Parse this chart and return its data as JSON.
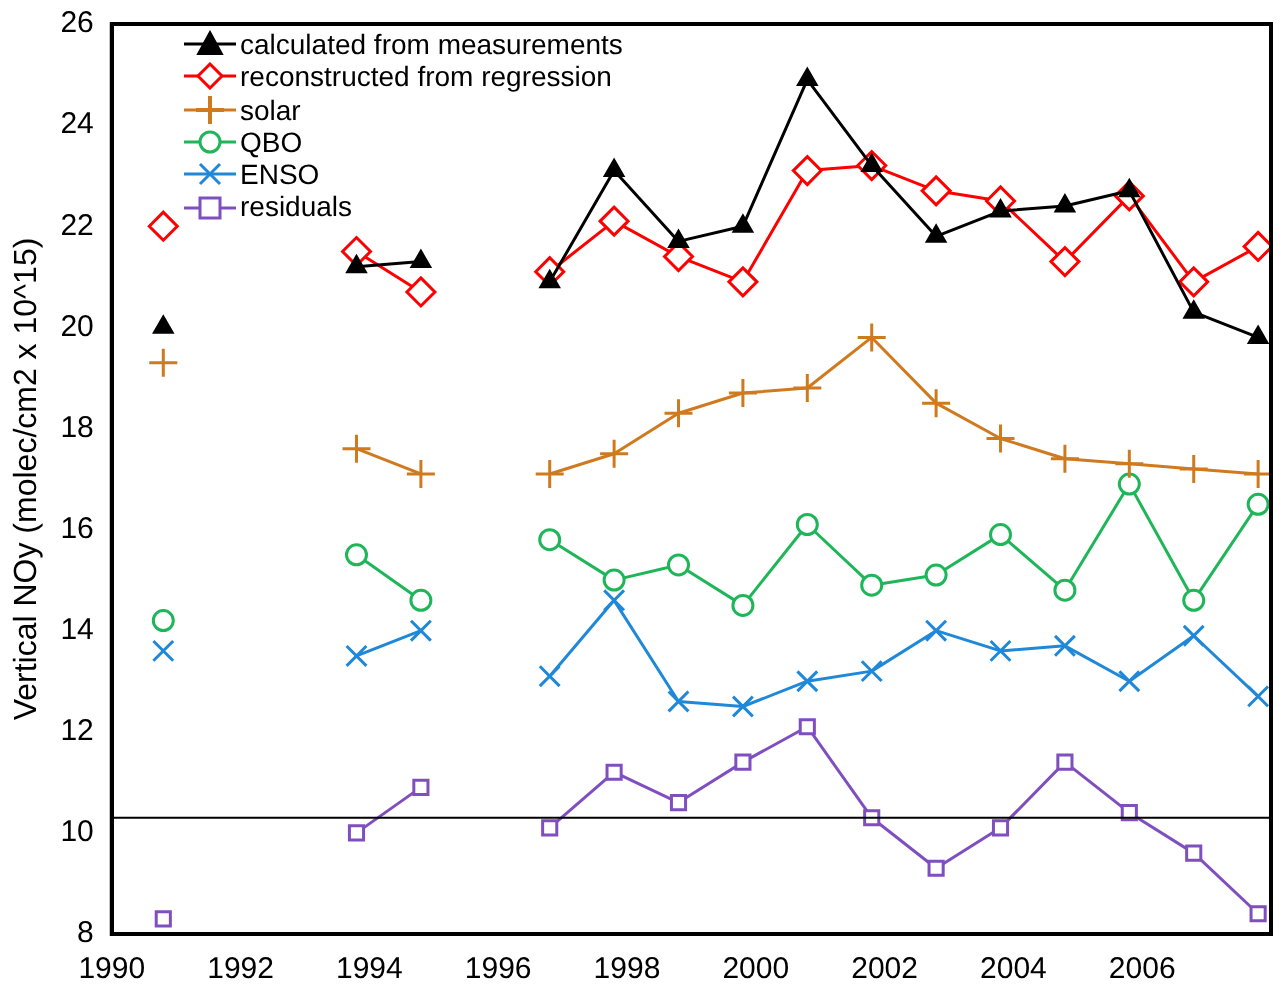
{
  "chart_data": {
    "type": "line",
    "ylabel": "Vertical NOy (molec/cm2 x 10^15)",
    "x": [
      1990.8,
      1991.8,
      1992.8,
      1993.8,
      1994.8,
      1995.8,
      1996.8,
      1997.8,
      1998.8,
      1999.8,
      2000.8,
      2001.8,
      2002.8,
      2003.8,
      2004.8,
      2005.8,
      2006.8,
      2007.8
    ],
    "xlim": [
      1990,
      2008
    ],
    "xticks": [
      1990,
      1992,
      1994,
      1996,
      1998,
      2000,
      2002,
      2004,
      2006
    ],
    "ylim": [
      8,
      26
    ],
    "yticks": [
      8,
      10,
      12,
      14,
      16,
      18,
      20,
      22,
      24,
      26
    ],
    "grid": false,
    "legend": "top left",
    "line_style": "solid",
    "ref_lines": [
      {
        "axis": "y",
        "value": 10.3,
        "color": "#000000"
      }
    ],
    "series": [
      {
        "name": "calculated from measurements",
        "color": "#000000",
        "marker": "triangle",
        "values": [
          20.0,
          null,
          null,
          21.2,
          21.3,
          null,
          20.9,
          23.1,
          21.7,
          22.0,
          24.9,
          23.2,
          21.8,
          22.3,
          22.4,
          22.7,
          20.3,
          19.8
        ]
      },
      {
        "name": "reconstructed from regression",
        "color": "#ff0000",
        "marker": "diamond",
        "values": [
          22.0,
          null,
          null,
          21.5,
          20.7,
          null,
          21.1,
          22.1,
          21.4,
          20.9,
          23.1,
          23.2,
          22.7,
          22.5,
          21.3,
          22.6,
          20.9,
          21.6
        ]
      },
      {
        "name": "solar",
        "color": "#d07a1f",
        "marker": "cross",
        "values": [
          19.3,
          null,
          null,
          17.6,
          17.1,
          null,
          17.1,
          17.5,
          18.3,
          18.7,
          18.8,
          19.8,
          18.5,
          17.8,
          17.4,
          17.3,
          17.2,
          17.1
        ]
      },
      {
        "name": "QBO",
        "color": "#1fb65a",
        "marker": "circle",
        "values": [
          14.2,
          null,
          null,
          15.5,
          14.6,
          null,
          15.8,
          15.0,
          15.3,
          14.5,
          16.1,
          14.9,
          15.1,
          15.9,
          14.8,
          16.9,
          14.6,
          16.5
        ]
      },
      {
        "name": "ENSO",
        "color": "#1f88d8",
        "marker": "cross",
        "values": [
          13.6,
          null,
          null,
          13.5,
          14.0,
          null,
          13.1,
          14.6,
          12.6,
          12.5,
          13.0,
          13.2,
          14.0,
          13.6,
          13.7,
          13.0,
          13.9,
          12.7
        ]
      },
      {
        "name": "residuals",
        "color": "#7f4fbf",
        "marker": "square",
        "values": [
          8.3,
          null,
          null,
          10.0,
          10.9,
          null,
          10.1,
          11.2,
          10.6,
          11.4,
          12.1,
          10.3,
          9.3,
          10.1,
          11.4,
          10.4,
          9.6,
          8.4
        ]
      }
    ]
  }
}
